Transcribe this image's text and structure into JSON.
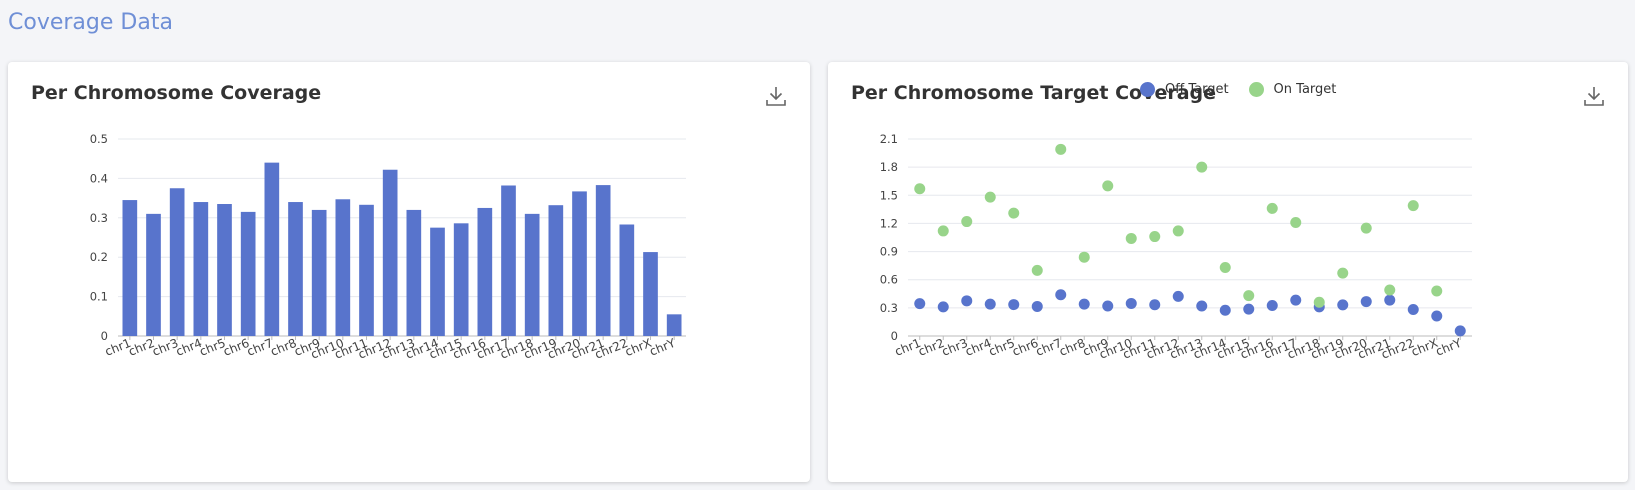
{
  "page": {
    "title": "Coverage Data"
  },
  "colors": {
    "off_target": "#5874cc",
    "on_target": "#98d48a",
    "bar": "#5874cc"
  },
  "icons": {
    "download": "download-icon"
  },
  "charts": {
    "left": {
      "title": "Per Chromosome Coverage",
      "chart_data": {
        "type": "bar",
        "title": "Per Chromosome Coverage",
        "categories": [
          "chr1",
          "chr2",
          "chr3",
          "chr4",
          "chr5",
          "chr6",
          "chr7",
          "chr8",
          "chr9",
          "chr10",
          "chr11",
          "chr12",
          "chr13",
          "chr14",
          "chr15",
          "chr16",
          "chr17",
          "chr18",
          "chr19",
          "chr20",
          "chr21",
          "chr22",
          "chrX",
          "chrY"
        ],
        "values": [
          0.345,
          0.31,
          0.375,
          0.34,
          0.335,
          0.315,
          0.44,
          0.34,
          0.32,
          0.347,
          0.333,
          0.422,
          0.32,
          0.275,
          0.286,
          0.325,
          0.382,
          0.31,
          0.332,
          0.367,
          0.383,
          0.283,
          0.213,
          0.055
        ],
        "yticks": [
          0,
          0.1,
          0.2,
          0.3,
          0.4,
          0.5
        ],
        "ylim": [
          0,
          0.5
        ],
        "grid": true,
        "xlabel": "",
        "ylabel": ""
      }
    },
    "right": {
      "title": "Per Chromosome Target Coverage",
      "chart_data": {
        "type": "scatter",
        "title": "Per Chromosome Target Coverage",
        "categories": [
          "chr1",
          "chr2",
          "chr3",
          "chr4",
          "chr5",
          "chr6",
          "chr7",
          "chr8",
          "chr9",
          "chr10",
          "chr11",
          "chr12",
          "chr13",
          "chr14",
          "chr15",
          "chr16",
          "chr17",
          "chr18",
          "chr19",
          "chr20",
          "chr21",
          "chr22",
          "chrX",
          "chrY"
        ],
        "series": [
          {
            "name": "Off Target",
            "values": [
              0.345,
              0.31,
              0.375,
              0.34,
              0.335,
              0.315,
              0.44,
              0.34,
              0.32,
              0.347,
              0.333,
              0.422,
              0.32,
              0.275,
              0.286,
              0.325,
              0.382,
              0.31,
              0.332,
              0.367,
              0.383,
              0.283,
              0.213,
              0.055
            ]
          },
          {
            "name": "On Target",
            "values": [
              1.57,
              1.12,
              1.22,
              1.48,
              1.31,
              0.7,
              1.99,
              0.84,
              1.6,
              1.04,
              1.06,
              1.12,
              1.8,
              0.73,
              0.43,
              1.36,
              1.21,
              0.36,
              0.67,
              1.15,
              0.49,
              1.39,
              0.48,
              null
            ]
          }
        ],
        "yticks": [
          0,
          0.3,
          0.6,
          0.9,
          1.2,
          1.5,
          1.8,
          2.1
        ],
        "ylim": [
          0,
          2.1
        ],
        "legend": "top",
        "grid": true,
        "xlabel": "",
        "ylabel": ""
      }
    }
  }
}
